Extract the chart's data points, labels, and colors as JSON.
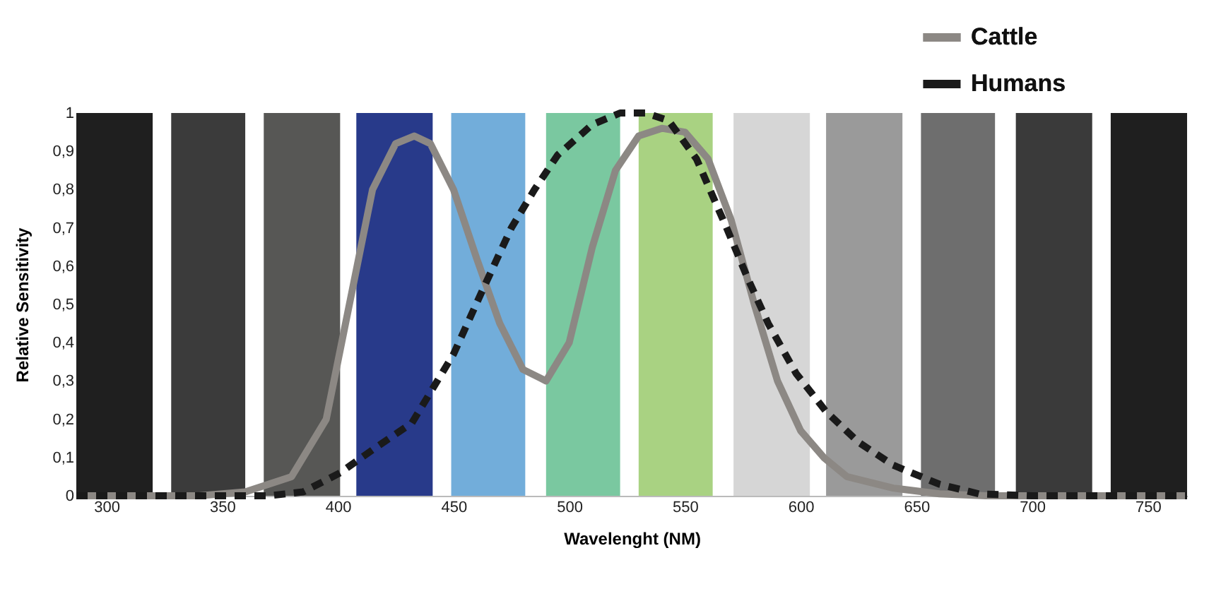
{
  "chart_data": {
    "type": "line",
    "xlabel": "Wavelenght (NM)",
    "ylabel": "Relative Sensitivity",
    "xlim": [
      287,
      767
    ],
    "ylim": [
      0,
      1
    ],
    "xticks": [
      300,
      350,
      400,
      450,
      500,
      550,
      600,
      650,
      700,
      750
    ],
    "yticks": [
      {
        "value": 0,
        "label": "0"
      },
      {
        "value": 0.1,
        "label": "0,1"
      },
      {
        "value": 0.2,
        "label": "0,2"
      },
      {
        "value": 0.3,
        "label": "0,3"
      },
      {
        "value": 0.4,
        "label": "0,4"
      },
      {
        "value": 0.5,
        "label": "0,5"
      },
      {
        "value": 0.6,
        "label": "0,6"
      },
      {
        "value": 0.7,
        "label": "0,7"
      },
      {
        "value": 0.8,
        "label": "0,8"
      },
      {
        "value": 0.9,
        "label": "0,9"
      },
      {
        "value": 1,
        "label": "1"
      }
    ],
    "grid": false,
    "legend": "top right",
    "marker": "none",
    "bands": [
      {
        "axis": "x",
        "from": 287,
        "to": 320,
        "color": "#1f1f1f"
      },
      {
        "axis": "x",
        "from": 328,
        "to": 360,
        "color": "#3b3b3b"
      },
      {
        "axis": "x",
        "from": 368,
        "to": 401,
        "color": "#575755"
      },
      {
        "axis": "x",
        "from": 408,
        "to": 441,
        "color": "#283a8a"
      },
      {
        "axis": "x",
        "from": 449,
        "to": 481,
        "color": "#72adda"
      },
      {
        "axis": "x",
        "from": 490,
        "to": 522,
        "color": "#7ac8a0"
      },
      {
        "axis": "x",
        "from": 530,
        "to": 562,
        "color": "#a9d282"
      },
      {
        "axis": "x",
        "from": 571,
        "to": 604,
        "color": "#d6d6d6"
      },
      {
        "axis": "x",
        "from": 611,
        "to": 644,
        "color": "#9a9a9a"
      },
      {
        "axis": "x",
        "from": 652,
        "to": 684,
        "color": "#6e6e6e"
      },
      {
        "axis": "x",
        "from": 693,
        "to": 726,
        "color": "#3a3a3a"
      },
      {
        "axis": "x",
        "from": 734,
        "to": 767,
        "color": "#1f1f1f"
      }
    ],
    "series": [
      {
        "name": "Cattle",
        "color": "#8c8884",
        "line_style": "solid",
        "x": [
          287,
          340,
          360,
          380,
          395,
          405,
          415,
          425,
          433,
          440,
          450,
          460,
          470,
          480,
          490,
          500,
          510,
          520,
          530,
          540,
          550,
          560,
          570,
          580,
          590,
          600,
          610,
          620,
          640,
          660,
          680,
          767
        ],
        "values": [
          0,
          0,
          0.01,
          0.05,
          0.2,
          0.5,
          0.8,
          0.92,
          0.94,
          0.92,
          0.8,
          0.62,
          0.45,
          0.33,
          0.3,
          0.4,
          0.65,
          0.85,
          0.94,
          0.96,
          0.95,
          0.88,
          0.72,
          0.5,
          0.3,
          0.17,
          0.1,
          0.05,
          0.02,
          0.005,
          0,
          0
        ]
      },
      {
        "name": "Humans",
        "color": "#1a1a1a",
        "line_style": "dashed",
        "x": [
          287,
          370,
          385,
          401,
          415,
          432,
          450,
          462,
          475,
          485,
          495,
          510,
          522,
          533,
          543,
          555,
          568,
          577,
          586,
          598,
          611,
          625,
          640,
          660,
          677,
          700,
          767
        ],
        "values": [
          0,
          0,
          0.01,
          0.06,
          0.12,
          0.19,
          0.37,
          0.53,
          0.7,
          0.8,
          0.89,
          0.97,
          1.0,
          1.0,
          0.98,
          0.88,
          0.7,
          0.57,
          0.45,
          0.32,
          0.22,
          0.14,
          0.08,
          0.03,
          0.005,
          0,
          0
        ]
      }
    ]
  }
}
